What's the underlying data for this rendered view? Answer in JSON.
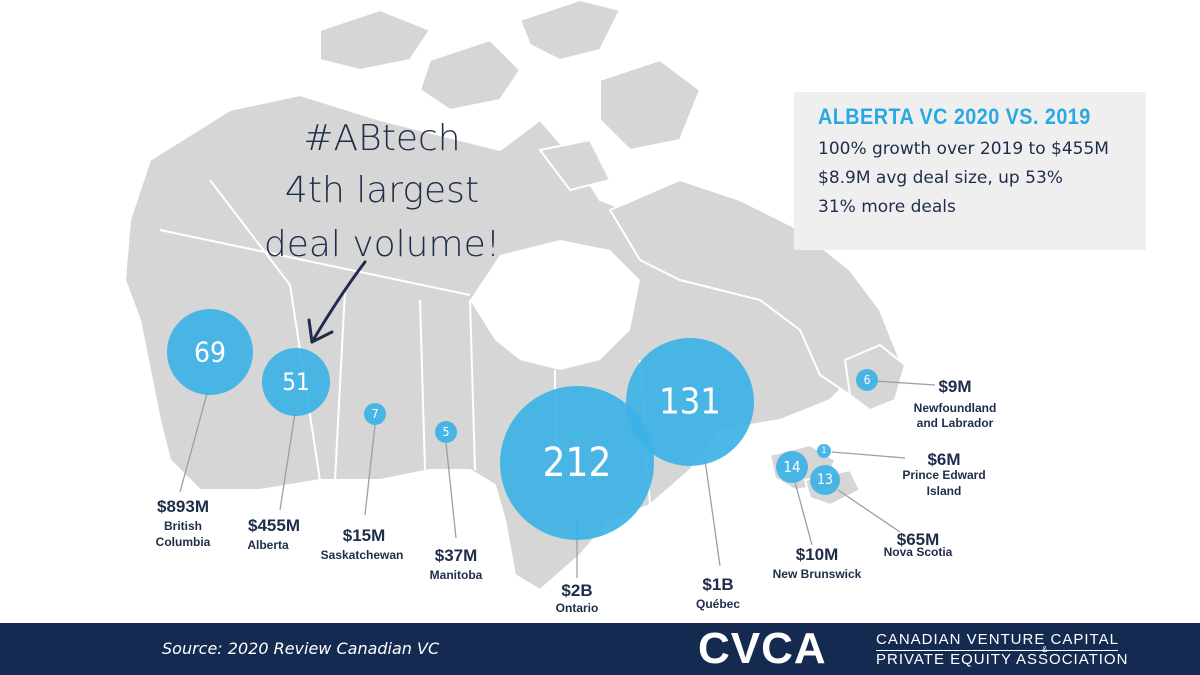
{
  "annotation": {
    "line1": "#ABtech",
    "line2": "4th largest",
    "line3": "deal volume!"
  },
  "info_box": {
    "title": "ALBERTA VC 2020 VS. 2019",
    "lines": [
      "100% growth over 2019 to $455M",
      "$8.9M avg deal size, up 53%",
      "31% more deals"
    ]
  },
  "provinces": [
    {
      "name": "British Columbia",
      "name_lines": [
        "British",
        "Columbia"
      ],
      "deals": "69",
      "amount": "$893M"
    },
    {
      "name": "Alberta",
      "name_lines": [
        "Alberta"
      ],
      "deals": "51",
      "amount": "$455M"
    },
    {
      "name": "Saskatchewan",
      "name_lines": [
        "Saskatchewan"
      ],
      "deals": "7",
      "amount": "$15M"
    },
    {
      "name": "Manitoba",
      "name_lines": [
        "Manitoba"
      ],
      "deals": "5",
      "amount": "$37M"
    },
    {
      "name": "Ontario",
      "name_lines": [
        "Ontario"
      ],
      "deals": "212",
      "amount": "$2B"
    },
    {
      "name": "Québec",
      "name_lines": [
        "Québec"
      ],
      "deals": "131",
      "amount": "$1B"
    },
    {
      "name": "New Brunswick",
      "name_lines": [
        "New Brunswick"
      ],
      "deals": "14",
      "amount": "$10M"
    },
    {
      "name": "Nova Scotia",
      "name_lines": [
        "Nova Scotia"
      ],
      "deals": "13",
      "amount": "$65M"
    },
    {
      "name": "Prince Edward Island",
      "name_lines": [
        "Prince Edward",
        "Island"
      ],
      "deals": "1",
      "amount": "$6M"
    },
    {
      "name": "Newfoundland and Labrador",
      "name_lines": [
        "Newfoundland",
        "and Labrador"
      ],
      "deals": "6",
      "amount": "$9M"
    }
  ],
  "footer": {
    "source": "Source: 2020 Review Canadian VC",
    "logo_wordmark": "CVCA",
    "logo_line1": "CANADIAN VENTURE CAPITAL",
    "logo_amp": "&",
    "logo_line2": "PRIVATE EQUITY ASSOCIATION"
  },
  "colors": {
    "land": "#d6d6d6",
    "border": "#ffffff",
    "bubble": "#3cb2e6",
    "navy": "#1f2d4a",
    "accent": "#29a9e1",
    "footer": "#142a50"
  }
}
